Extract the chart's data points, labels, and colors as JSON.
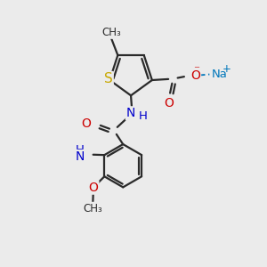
{
  "background_color": "#ebebeb",
  "bond_color": "#2a2a2a",
  "bond_width": 1.6,
  "atom_colors": {
    "S": "#c8a800",
    "N": "#0000cc",
    "O": "#cc0000",
    "Na": "#0077bb",
    "C": "#2a2a2a",
    "H": "#2a2a2a"
  },
  "font_size_main": 10,
  "font_size_sub": 8.5,
  "font_size_label": 9
}
